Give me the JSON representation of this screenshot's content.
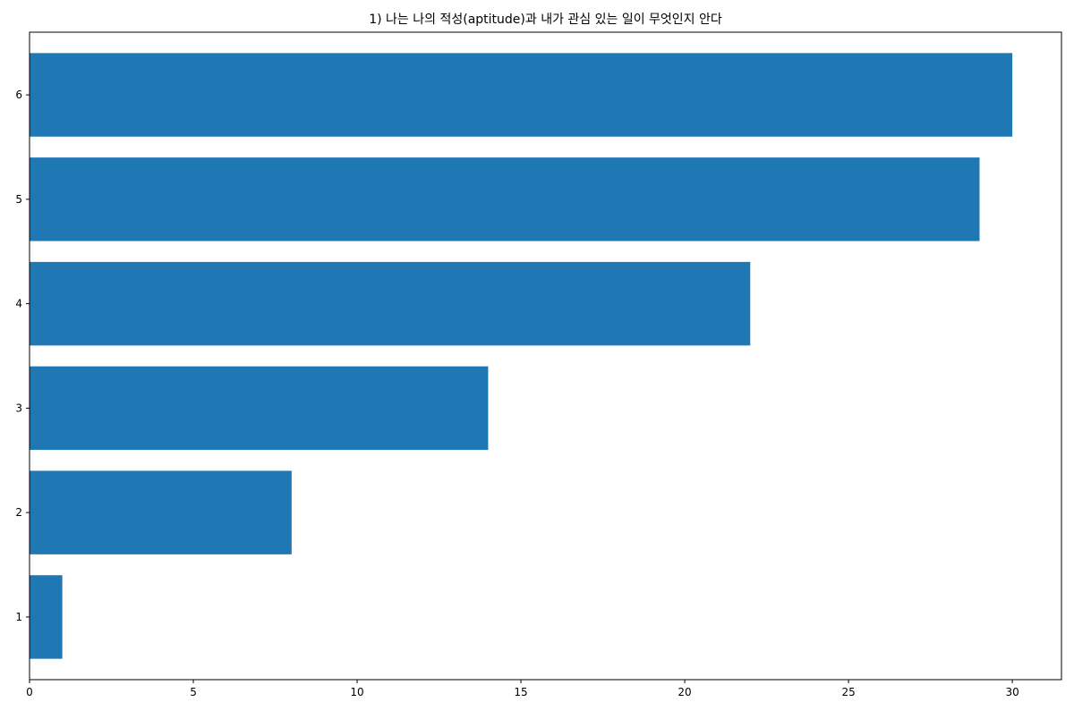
{
  "chart_data": {
    "type": "bar",
    "orientation": "horizontal",
    "title": "1) 나는 나의 적성(aptitude)과 내가 관심 있는 일이 무엇인지 안다",
    "xlabel": "",
    "ylabel": "",
    "categories": [
      "1",
      "2",
      "3",
      "4",
      "5",
      "6"
    ],
    "values": [
      1,
      8,
      14,
      22,
      29,
      30
    ],
    "xlim": [
      0,
      31.5
    ],
    "xticks": [
      0,
      5,
      10,
      15,
      20,
      25,
      30
    ],
    "grid": false,
    "bar_color": "#1f77b4"
  }
}
